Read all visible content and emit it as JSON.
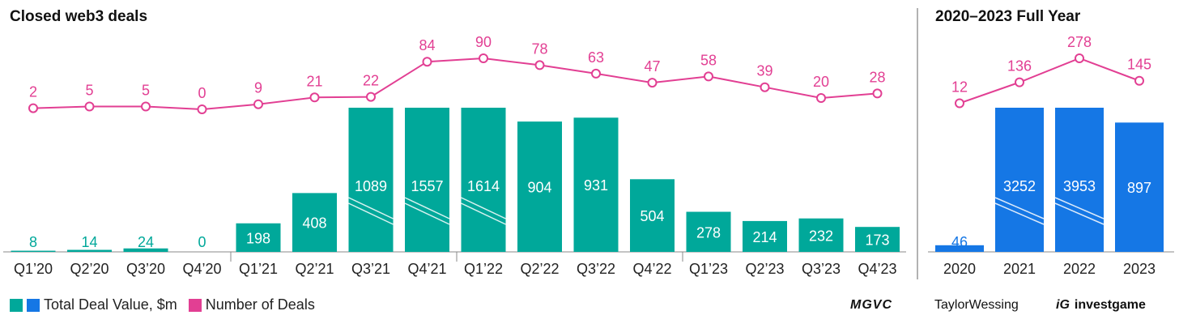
{
  "colors": {
    "teal": "#00a89a",
    "blue": "#1577e5",
    "pink": "#e23f93",
    "divider": "#999999"
  },
  "chart_data": [
    {
      "type": "bar",
      "title": "Closed web3 deals",
      "categories": [
        "Q1’20",
        "Q2’20",
        "Q3’20",
        "Q4’20",
        "Q1’21",
        "Q2’21",
        "Q3’21",
        "Q4’21",
        "Q1’22",
        "Q2’22",
        "Q3’22",
        "Q4’22",
        "Q1’23",
        "Q2’23",
        "Q3’23",
        "Q4’23"
      ],
      "series": [
        {
          "name": "Total Deal Value, $m",
          "type": "bar",
          "color": "#00a89a",
          "values": [
            8,
            14,
            24,
            0,
            198,
            408,
            1089,
            1557,
            1614,
            904,
            931,
            504,
            278,
            214,
            232,
            173
          ],
          "broken": [
            false,
            false,
            false,
            false,
            false,
            false,
            true,
            true,
            true,
            false,
            false,
            false,
            false,
            false,
            false,
            false
          ]
        },
        {
          "name": "Number of Deals",
          "type": "line",
          "color": "#e23f93",
          "values": [
            2,
            5,
            5,
            0,
            9,
            21,
            22,
            84,
            90,
            78,
            63,
            47,
            58,
            39,
            20,
            28
          ]
        }
      ]
    },
    {
      "type": "bar",
      "title": "2020–2023 Full Year",
      "categories": [
        "2020",
        "2021",
        "2022",
        "2023"
      ],
      "series": [
        {
          "name": "Total Deal Value, $m",
          "type": "bar",
          "color": "#1577e5",
          "values": [
            46,
            3252,
            3953,
            897
          ],
          "broken": [
            false,
            true,
            true,
            false
          ]
        },
        {
          "name": "Number of Deals",
          "type": "line",
          "color": "#e23f93",
          "values": [
            12,
            136,
            278,
            145
          ]
        }
      ]
    }
  ],
  "legend": {
    "value_label": "Total Deal Value, $m",
    "count_label": "Number of Deals"
  },
  "brands": {
    "mgvc": "MGVC",
    "taylor": "TaylorWessing",
    "investgame": "investgame"
  }
}
